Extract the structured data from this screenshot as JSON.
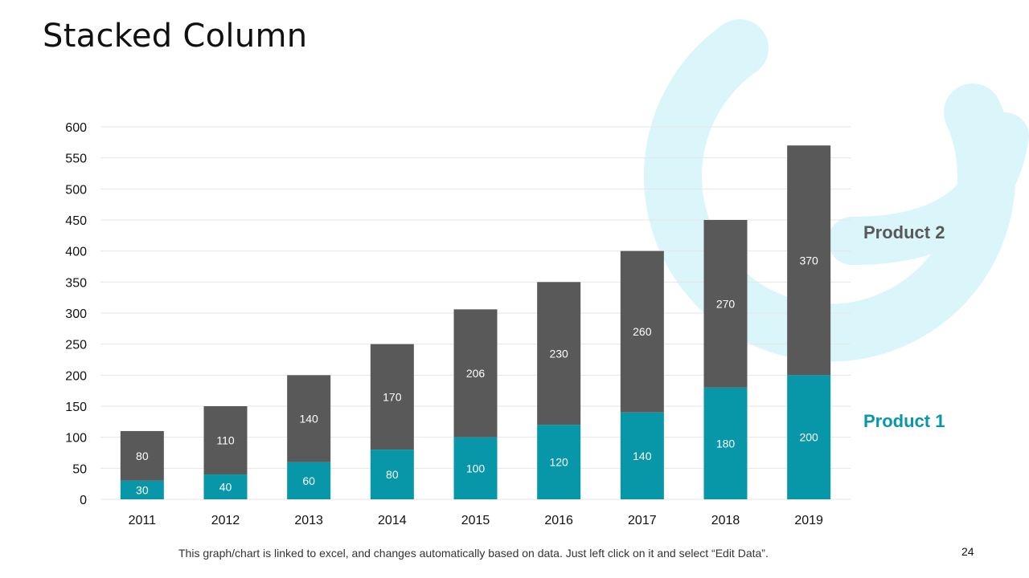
{
  "slide": {
    "title": "Stacked Column",
    "footnote": "This graph/chart is linked to excel, and changes automatically  based on data. Just left click on it and select “Edit Data”.",
    "page_number": "24"
  },
  "colors": {
    "product1": "#0897A9",
    "product2": "#595959",
    "decoration": "#DAF6FB",
    "grid": "#E6E6E6"
  },
  "chart_data": {
    "type": "bar",
    "stacked": true,
    "title": "",
    "xlabel": "",
    "ylabel": "",
    "categories": [
      "2011",
      "2012",
      "2013",
      "2014",
      "2015",
      "2016",
      "2017",
      "2018",
      "2019"
    ],
    "series": [
      {
        "name": "Product 1",
        "values": [
          30,
          40,
          60,
          80,
          100,
          120,
          140,
          180,
          200
        ]
      },
      {
        "name": "Product 2",
        "values": [
          80,
          110,
          140,
          170,
          206,
          230,
          260,
          270,
          370
        ]
      }
    ],
    "ylim": [
      0,
      600
    ],
    "yticks": [
      "0",
      "50",
      "100",
      "150",
      "200",
      "250",
      "300",
      "350",
      "400",
      "450",
      "500",
      "550",
      "600"
    ],
    "grid": true,
    "legend": "right"
  }
}
